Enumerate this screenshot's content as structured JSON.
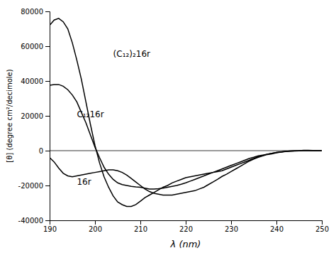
{
  "chart_data": {
    "type": "line",
    "title": "",
    "xlabel": "λ (nm)",
    "ylabel": "[θ] (degree cm²/decimole)",
    "xlim": [
      190,
      250
    ],
    "ylim": [
      -40000,
      80000
    ],
    "xticks": [
      190,
      200,
      210,
      220,
      230,
      240,
      250
    ],
    "yticks": [
      -40000,
      -20000,
      0,
      20000,
      40000,
      60000,
      80000
    ],
    "grid": false,
    "color": "#000000",
    "x": [
      190,
      191,
      192,
      193,
      194,
      195,
      196,
      197,
      198,
      199,
      200,
      201,
      202,
      203,
      204,
      205,
      206,
      207,
      208,
      209,
      210,
      211,
      212,
      213,
      214,
      215,
      216,
      217,
      218,
      219,
      220,
      221,
      222,
      223,
      224,
      225,
      226,
      227,
      228,
      229,
      230,
      231,
      232,
      233,
      234,
      235,
      236,
      237,
      238,
      239,
      240,
      241,
      242,
      243,
      244,
      245,
      246,
      247,
      248,
      249,
      250
    ],
    "series": [
      {
        "values": [
          72000,
          75000,
          76000,
          74000,
          70000,
          62000,
          52000,
          41000,
          28000,
          15000,
          3000,
          -7000,
          -15000,
          -21000,
          -26000,
          -29500,
          -31000,
          -32000,
          -32000,
          -31000,
          -29000,
          -27000,
          -25500,
          -24000,
          -22500,
          -21000,
          -20000,
          -18500,
          -17500,
          -16500,
          -15500,
          -15000,
          -14500,
          -14000,
          -13500,
          -13000,
          -12500,
          -12000,
          -11500,
          -10500,
          -9500,
          -8500,
          -7500,
          -6500,
          -5500,
          -4500,
          -3500,
          -2800,
          -2000,
          -1500,
          -1000,
          -700,
          -400,
          -200,
          -100,
          0,
          200,
          200,
          100,
          0,
          0
        ]
      },
      {
        "values": [
          37500,
          38000,
          38000,
          37000,
          35000,
          32000,
          28000,
          22000,
          16000,
          9000,
          2000,
          -4000,
          -9500,
          -13500,
          -16500,
          -18500,
          -19500,
          -20000,
          -20500,
          -20800,
          -21000,
          -21500,
          -22000,
          -22000,
          -21800,
          -21500,
          -21000,
          -20500,
          -20000,
          -19300,
          -18500,
          -17500,
          -16500,
          -15500,
          -14500,
          -13500,
          -12500,
          -11500,
          -10500,
          -9500,
          -8500,
          -7500,
          -6500,
          -5500,
          -4500,
          -3800,
          -3000,
          -2500,
          -2000,
          -1500,
          -1000,
          -700,
          -400,
          -200,
          -100,
          0,
          100,
          100,
          0,
          0,
          0
        ]
      },
      {
        "values": [
          -4000,
          -6500,
          -10000,
          -13000,
          -14500,
          -15000,
          -14500,
          -14000,
          -13500,
          -13000,
          -12500,
          -12000,
          -11500,
          -11000,
          -11000,
          -11500,
          -12500,
          -14000,
          -16000,
          -18000,
          -20000,
          -22000,
          -23500,
          -24500,
          -25000,
          -25500,
          -25500,
          -25500,
          -25000,
          -24500,
          -24000,
          -23500,
          -23000,
          -22000,
          -21000,
          -19500,
          -18000,
          -16500,
          -14800,
          -13500,
          -12000,
          -10500,
          -9000,
          -7500,
          -6000,
          -4800,
          -3800,
          -3000,
          -2200,
          -1800,
          -1200,
          -800,
          -500,
          -300,
          -200,
          -100,
          0,
          100,
          0,
          0,
          0
        ]
      }
    ],
    "hlines": [
      0
    ],
    "annotations": [
      {
        "text": "(C₁₂)₂16r",
        "x": 204,
        "y": 54000
      },
      {
        "text": "C₁₂16r",
        "x": 196,
        "y": 19000
      },
      {
        "text": "16r",
        "x": 196,
        "y": -19500
      }
    ]
  }
}
